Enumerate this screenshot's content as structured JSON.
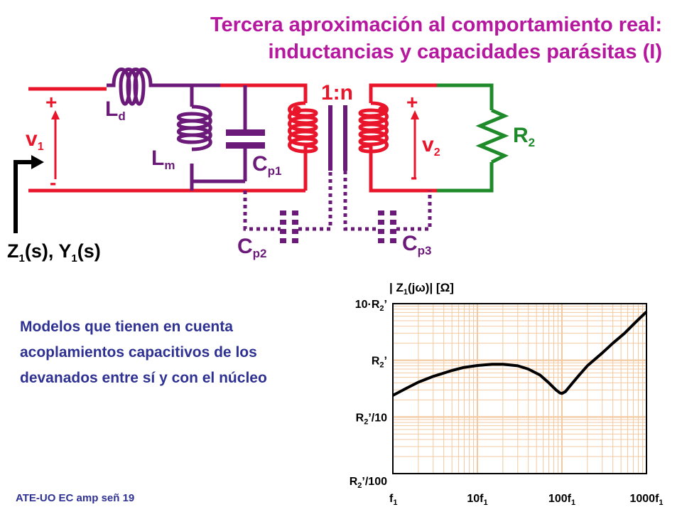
{
  "title_line1": "Tercera aproximación al comportamiento real:",
  "title_line2": "inductancias y capacidades parásitas (I)",
  "description_lines": [
    "Modelos que tienen en cuenta",
    "acoplamientos capacitivos de los",
    "devanados entre sí y con el núcleo"
  ],
  "footer": "ATE-UO EC amp señ 19",
  "circuit": {
    "ratio": "1:n",
    "v1": "v",
    "v1_sub": "1",
    "v2": "v",
    "v2_sub": "2",
    "plus": "+",
    "minus": "-",
    "Ld": "L",
    "Ld_sub": "d",
    "Lm": "L",
    "Lm_sub": "m",
    "Cp1": "C",
    "Cp1_sub": "p1",
    "Cp2": "C",
    "Cp2_sub": "p2",
    "Cp3": "C",
    "Cp3_sub": "p3",
    "R2": "R",
    "R2_sub": "2",
    "impedance_label": "Z",
    "impedance_sub": "1",
    "impedance_mid": "(s), Y",
    "impedance_sub2": "1",
    "impedance_end": "(s)",
    "colors": {
      "primary": "#e8152b",
      "secondary": "#e8152b",
      "purple": "#6b1a7a",
      "green": "#1f8a2a"
    }
  },
  "chart_data": {
    "type": "line",
    "ylabel_pre": "Z",
    "ylabel_sub": "1",
    "ylabel_mid": "(j",
    "ylabel_omega": "ω",
    "ylabel_end": ")",
    "ylabel_unit_open": "[",
    "ylabel_unit": "Ω",
    "ylabel_unit_close": "]",
    "x_scale": "log",
    "y_scale": "log",
    "x_ticks": [
      {
        "value": 1,
        "text": "f",
        "sub": "1"
      },
      {
        "value": 10,
        "text": "10f",
        "sub": "1"
      },
      {
        "value": 100,
        "text": "100f",
        "sub": "1"
      },
      {
        "value": 1000,
        "text": "1000f",
        "sub": "1"
      }
    ],
    "y_ticks": [
      {
        "value": 0.01,
        "text": "R",
        "sub": "2",
        "suffix": "’/100"
      },
      {
        "value": 0.1,
        "text": "R",
        "sub": "2",
        "suffix": "’/10"
      },
      {
        "value": 1,
        "text": "R",
        "sub": "2",
        "suffix": "’"
      },
      {
        "value": 10,
        "text": "10·R",
        "sub": "2",
        "suffix": "’"
      }
    ],
    "xlim": [
      1,
      1000
    ],
    "ylim": [
      0.01,
      10
    ],
    "grid": true,
    "grid_color": "#f2c9a0",
    "series": [
      {
        "x": [
          1,
          1.5,
          2,
          3,
          5,
          7,
          10,
          15,
          20,
          30,
          40,
          55,
          70,
          85,
          95,
          100,
          110,
          130,
          160,
          200,
          300,
          400,
          550,
          700,
          850,
          1000
        ],
        "y": [
          0.24,
          0.33,
          0.41,
          0.52,
          0.66,
          0.75,
          0.81,
          0.85,
          0.85,
          0.8,
          0.7,
          0.55,
          0.4,
          0.3,
          0.265,
          0.26,
          0.28,
          0.38,
          0.55,
          0.8,
          1.35,
          2.0,
          3.0,
          4.3,
          5.7,
          7.2
        ]
      }
    ]
  }
}
